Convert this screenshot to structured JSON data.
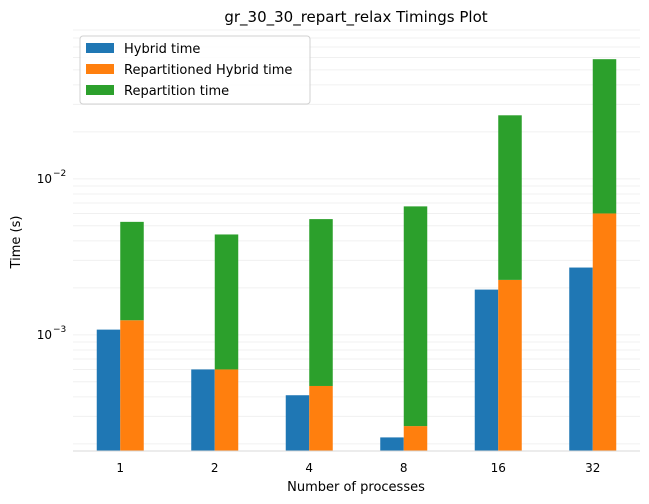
{
  "chart_data": {
    "type": "bar",
    "title": "gr_30_30_repart_relax Timings Plot",
    "xlabel": "Number of processes",
    "ylabel": "Time (s)",
    "yscale": "log",
    "ylim": [
      0.00018,
      0.09
    ],
    "yticks": [
      {
        "value": 0.001,
        "base": "10",
        "exp": "−3"
      },
      {
        "value": 0.01,
        "base": "10",
        "exp": "−2"
      }
    ],
    "grid": "horizontal minor, faint",
    "legend_position": "top-left",
    "categories": [
      "1",
      "2",
      "4",
      "8",
      "16",
      "32"
    ],
    "series": [
      {
        "name": "Hybrid time",
        "color": "#1f77b4",
        "values": [
          0.00108,
          0.0006,
          0.00041,
          0.00022,
          0.00195,
          0.0027
        ],
        "stack": "left"
      },
      {
        "name": "Repartitioned Hybrid time",
        "color": "#ff7f0e",
        "values": [
          0.00124,
          0.0006,
          0.00047,
          0.00026,
          0.00225,
          0.006
        ],
        "stack": "right"
      },
      {
        "name": "Repartition time",
        "color": "#2ca02c",
        "values": [
          0.00406,
          0.0038,
          0.00505,
          0.0064,
          0.0233,
          0.0525
        ],
        "stack": "right"
      }
    ]
  }
}
